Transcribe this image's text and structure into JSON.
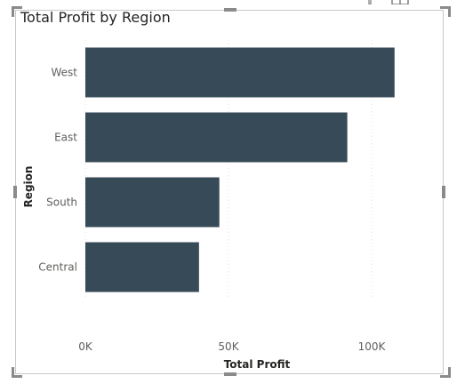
{
  "chart_data": {
    "type": "bar",
    "orientation": "horizontal",
    "title": "Total Profit by Region",
    "xlabel": "Total Profit",
    "ylabel": "Region",
    "categories": [
      "West",
      "East",
      "South",
      "Central"
    ],
    "values": [
      108000,
      91500,
      46800,
      39700
    ],
    "xlim": [
      0,
      125000
    ],
    "xticks": [
      0,
      50000,
      100000
    ],
    "xtick_labels": [
      "0K",
      "50K",
      "100K"
    ],
    "grid": true,
    "bar_color": "#374a58"
  },
  "icons": {
    "filter": "filter-icon",
    "focus_mode": "focus-mode-icon"
  }
}
